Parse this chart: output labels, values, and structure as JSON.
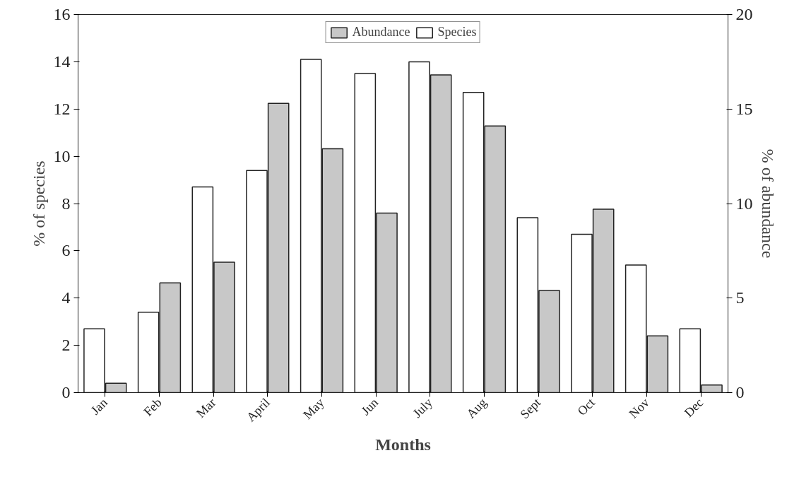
{
  "chart_data": {
    "type": "bar",
    "xlabel": "Months",
    "ylabel": "% of species",
    "y2label": "% of abundance",
    "categories": [
      "Jan",
      "Feb",
      "Mar",
      "April",
      "May",
      "Jun",
      "July",
      "Aug",
      "Sept",
      "Oct",
      "Nov",
      "Dec"
    ],
    "series": [
      {
        "name": "Abundance",
        "color": "#c8c8c8",
        "axis": "y2",
        "values": [
          0.5,
          5.8,
          6.9,
          15.3,
          12.9,
          9.5,
          16.8,
          14.1,
          5.4,
          9.7,
          3.0,
          0.4
        ]
      },
      {
        "name": "Species",
        "color": "#ffffff",
        "values": [
          2.7,
          3.4,
          8.7,
          9.4,
          14.1,
          13.5,
          14.0,
          12.7,
          7.4,
          6.7,
          5.4,
          2.7
        ]
      }
    ],
    "ylim": [
      0,
      16
    ],
    "yticks": [
      0,
      2,
      4,
      6,
      8,
      10,
      12,
      14,
      16
    ],
    "y2lim": [
      0,
      20
    ],
    "y2ticks": [
      0,
      5,
      10,
      15,
      20
    ],
    "legend": "top",
    "grid": false
  }
}
